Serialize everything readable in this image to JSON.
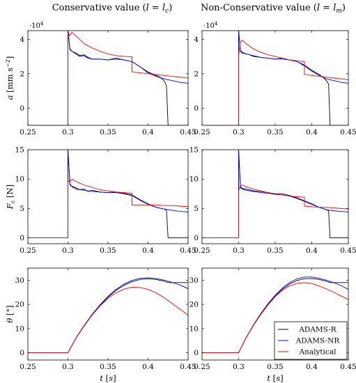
{
  "columns": [
    {
      "title": "Conservative value (l = l_c)"
    },
    {
      "title": "Non-Conservative value (l = l_m)"
    }
  ],
  "legend": {
    "entries": [
      "ADAMS-R",
      "ADAMS-NR",
      "Analytical"
    ],
    "placement": "bottom-right of bottom-right panel"
  },
  "colors": {
    "ADAMS-R": "#000000",
    "ADAMS-NR": "#0000ff",
    "Analytical": "#ff0000"
  },
  "chart_data": [
    {
      "type": "line",
      "row": 0,
      "col": 0,
      "title": "Conservative value (l = l_c)",
      "xlabel": "",
      "ylabel": "a [mm s^-2]",
      "xlim": [
        0.25,
        0.45
      ],
      "ylim": [
        -10000,
        45000
      ],
      "xticks": [
        "0.25",
        "0.3",
        "0.35",
        "0.4",
        "0.45"
      ],
      "yticks": [
        "0",
        "2",
        "4"
      ],
      "yscale_label": "·10^4",
      "series": [
        {
          "name": "ADAMS-R",
          "x": [
            0.25,
            0.3,
            0.3,
            0.3025,
            0.305,
            0.31,
            0.315,
            0.32,
            0.325,
            0.33,
            0.34,
            0.35,
            0.36,
            0.37,
            0.38,
            0.39,
            0.4,
            0.41,
            0.415,
            0.42,
            0.423,
            0.425,
            0.45
          ],
          "y": [
            -10000,
            -10000,
            45000,
            34000,
            33000,
            32000,
            30500,
            31000,
            29500,
            28500,
            28500,
            28000,
            29000,
            28000,
            27000,
            24000,
            21000,
            19000,
            18000,
            16000,
            13000,
            -10000,
            -10000
          ]
        },
        {
          "name": "ADAMS-NR",
          "x": [
            0.25,
            0.3,
            0.3,
            0.3025,
            0.305,
            0.31,
            0.315,
            0.32,
            0.325,
            0.33,
            0.34,
            0.35,
            0.36,
            0.37,
            0.38,
            0.39,
            0.4,
            0.41,
            0.42,
            0.43,
            0.44,
            0.45
          ],
          "y": [
            -10000,
            -10000,
            45000,
            34500,
            33000,
            31500,
            30000,
            30500,
            29000,
            28500,
            28500,
            28000,
            28500,
            28000,
            27000,
            24000,
            20500,
            18500,
            17000,
            16000,
            15000,
            14500
          ]
        },
        {
          "name": "Analytical",
          "x": [
            0.25,
            0.3,
            0.3,
            0.302,
            0.305,
            0.31,
            0.32,
            0.33,
            0.34,
            0.35,
            0.36,
            0.37,
            0.38,
            0.38,
            0.39,
            0.4,
            0.41,
            0.42,
            0.43,
            0.44,
            0.45
          ],
          "y": [
            -10000,
            -10000,
            45000,
            42000,
            44000,
            42000,
            37500,
            35000,
            33000,
            31500,
            30500,
            30000,
            29800,
            21000,
            20500,
            20000,
            19500,
            19000,
            18500,
            18000,
            17500
          ]
        }
      ]
    },
    {
      "type": "line",
      "row": 0,
      "col": 1,
      "title": "Non-Conservative value (l = l_m)",
      "xlabel": "",
      "ylabel": "",
      "xlim": [
        0.25,
        0.45
      ],
      "ylim": [
        -10000,
        45000
      ],
      "xticks": [
        "0.25",
        "0.3",
        "0.35",
        "0.4",
        "0.45"
      ],
      "yticks": [
        "0",
        "2",
        "4"
      ],
      "yscale_label": "·10^4",
      "series": [
        {
          "name": "ADAMS-R",
          "x": [
            0.25,
            0.3,
            0.3,
            0.3025,
            0.305,
            0.31,
            0.315,
            0.32,
            0.33,
            0.34,
            0.35,
            0.36,
            0.37,
            0.38,
            0.39,
            0.4,
            0.41,
            0.415,
            0.42,
            0.423,
            0.425,
            0.45
          ],
          "y": [
            -10000,
            -10000,
            45000,
            33000,
            32000,
            31500,
            31000,
            30000,
            29500,
            29000,
            28500,
            29000,
            28000,
            27000,
            25000,
            22000,
            19500,
            18000,
            16000,
            14000,
            -10000,
            -10000
          ]
        },
        {
          "name": "ADAMS-NR",
          "x": [
            0.25,
            0.3,
            0.3,
            0.3025,
            0.305,
            0.31,
            0.32,
            0.33,
            0.34,
            0.35,
            0.36,
            0.37,
            0.38,
            0.39,
            0.4,
            0.41,
            0.42,
            0.43,
            0.44,
            0.45
          ],
          "y": [
            -10000,
            -10000,
            45000,
            33500,
            32500,
            31500,
            30500,
            29500,
            29000,
            28500,
            28500,
            28000,
            27000,
            24500,
            21500,
            19000,
            17000,
            16000,
            15000,
            14500
          ]
        },
        {
          "name": "Analytical",
          "x": [
            0.25,
            0.3,
            0.3,
            0.302,
            0.305,
            0.31,
            0.32,
            0.33,
            0.34,
            0.35,
            0.36,
            0.37,
            0.38,
            0.39,
            0.39,
            0.4,
            0.41,
            0.42,
            0.43,
            0.44,
            0.45
          ],
          "y": [
            -10000,
            -10000,
            30000,
            38000,
            39500,
            37500,
            34500,
            32500,
            31000,
            30000,
            29000,
            28000,
            27500,
            27000,
            19500,
            19000,
            18500,
            18000,
            17500,
            17000,
            16500
          ]
        }
      ]
    },
    {
      "type": "line",
      "row": 1,
      "col": 0,
      "title": "",
      "xlabel": "",
      "ylabel": "F_c [N]",
      "xlim": [
        0.25,
        0.45
      ],
      "ylim": [
        -1,
        15
      ],
      "xticks": [
        "0.25",
        "0.3",
        "0.35",
        "0.4",
        "0.45"
      ],
      "yticks": [
        "0",
        "5",
        "10",
        "15"
      ],
      "series": [
        {
          "name": "ADAMS-R",
          "x": [
            0.25,
            0.3,
            0.3,
            0.3025,
            0.305,
            0.31,
            0.315,
            0.32,
            0.325,
            0.33,
            0.34,
            0.35,
            0.36,
            0.37,
            0.38,
            0.39,
            0.4,
            0.41,
            0.42,
            0.423,
            0.425,
            0.45
          ],
          "y": [
            0,
            0,
            15,
            9,
            8.8,
            8.5,
            8.2,
            8.3,
            7.9,
            8.1,
            7.8,
            7.7,
            7.8,
            7.6,
            7.3,
            6.5,
            5.8,
            5.2,
            4.9,
            4.7,
            0,
            0
          ]
        },
        {
          "name": "ADAMS-NR",
          "x": [
            0.25,
            0.3,
            0.3,
            0.3025,
            0.305,
            0.31,
            0.32,
            0.33,
            0.34,
            0.35,
            0.36,
            0.37,
            0.38,
            0.39,
            0.4,
            0.41,
            0.42,
            0.43,
            0.44,
            0.45
          ],
          "y": [
            0,
            0,
            15,
            9.2,
            8.7,
            8.3,
            8.1,
            7.9,
            7.8,
            7.7,
            7.7,
            7.5,
            7.2,
            6.4,
            5.7,
            5.2,
            4.9,
            4.7,
            4.5,
            4.4
          ]
        },
        {
          "name": "Analytical",
          "x": [
            0.25,
            0.3,
            0.3,
            0.302,
            0.305,
            0.31,
            0.32,
            0.33,
            0.34,
            0.35,
            0.36,
            0.37,
            0.38,
            0.38,
            0.39,
            0.4,
            0.41,
            0.42,
            0.43,
            0.44,
            0.45
          ],
          "y": [
            0,
            0,
            10,
            9.5,
            10,
            9.6,
            9,
            8.6,
            8.2,
            8,
            7.8,
            7.7,
            7.6,
            5.6,
            5.6,
            5.6,
            5.6,
            5.5,
            5.5,
            5.4,
            5.3
          ]
        }
      ]
    },
    {
      "type": "line",
      "row": 1,
      "col": 1,
      "title": "",
      "xlabel": "",
      "ylabel": "",
      "xlim": [
        0.25,
        0.45
      ],
      "ylim": [
        -1,
        15
      ],
      "xticks": [
        "0.25",
        "0.3",
        "0.35",
        "0.4",
        "0.45"
      ],
      "yticks": [
        "0",
        "5",
        "10",
        "15"
      ],
      "series": [
        {
          "name": "ADAMS-R",
          "x": [
            0.25,
            0.3,
            0.3,
            0.3025,
            0.305,
            0.31,
            0.32,
            0.33,
            0.34,
            0.35,
            0.36,
            0.37,
            0.38,
            0.39,
            0.4,
            0.41,
            0.42,
            0.423,
            0.425,
            0.45
          ],
          "y": [
            0,
            0,
            15,
            8.7,
            8.4,
            8.3,
            8,
            7.9,
            7.7,
            7.5,
            7.5,
            7.2,
            6.8,
            6.3,
            5.8,
            5.2,
            4.8,
            4.6,
            0,
            0
          ]
        },
        {
          "name": "ADAMS-NR",
          "x": [
            0.25,
            0.3,
            0.3,
            0.3025,
            0.305,
            0.31,
            0.32,
            0.33,
            0.34,
            0.35,
            0.36,
            0.37,
            0.38,
            0.39,
            0.4,
            0.41,
            0.42,
            0.43,
            0.44,
            0.45
          ],
          "y": [
            0,
            0,
            15,
            8.5,
            8.3,
            8.1,
            7.9,
            7.7,
            7.6,
            7.4,
            7.3,
            7.1,
            6.7,
            6.2,
            5.7,
            5.2,
            4.8,
            4.6,
            4.5,
            4.4
          ]
        },
        {
          "name": "Analytical",
          "x": [
            0.25,
            0.3,
            0.3,
            0.302,
            0.305,
            0.31,
            0.32,
            0.33,
            0.34,
            0.35,
            0.36,
            0.37,
            0.38,
            0.39,
            0.39,
            0.4,
            0.41,
            0.42,
            0.43,
            0.44,
            0.45
          ],
          "y": [
            0,
            0,
            8,
            8.8,
            9,
            8.7,
            8.3,
            8,
            7.7,
            7.5,
            7.3,
            7.1,
            7,
            6.9,
            5.4,
            5.3,
            5.2,
            5.2,
            5.1,
            5,
            4.9
          ]
        }
      ]
    },
    {
      "type": "line",
      "row": 2,
      "col": 0,
      "title": "",
      "xlabel": "t [s]",
      "ylabel": "θ [°]",
      "xlim": [
        0.25,
        0.45
      ],
      "ylim": [
        -3,
        35
      ],
      "xticks": [
        "0.25",
        "0.3",
        "0.35",
        "0.4",
        "0.45"
      ],
      "yticks": [
        "0",
        "10",
        "20",
        "30"
      ],
      "series": [
        {
          "name": "ADAMS-R",
          "x": [
            0.25,
            0.3,
            0.31,
            0.32,
            0.33,
            0.34,
            0.35,
            0.36,
            0.37,
            0.38,
            0.39,
            0.4,
            0.41,
            0.42,
            0.425,
            0.45
          ],
          "y": [
            0,
            0,
            6,
            11,
            15.5,
            19.5,
            23,
            25.8,
            27.9,
            29.4,
            30.3,
            30.6,
            30.3,
            29.6,
            29,
            29
          ]
        },
        {
          "name": "ADAMS-NR",
          "x": [
            0.25,
            0.3,
            0.31,
            0.32,
            0.33,
            0.34,
            0.35,
            0.36,
            0.37,
            0.38,
            0.39,
            0.4,
            0.41,
            0.42,
            0.43,
            0.44,
            0.45
          ],
          "y": [
            0,
            0,
            6.1,
            11.2,
            15.8,
            19.8,
            23.3,
            26.2,
            28.4,
            29.9,
            30.8,
            31,
            30.7,
            30,
            29.1,
            28,
            26.5
          ]
        },
        {
          "name": "Analytical",
          "x": [
            0.25,
            0.3,
            0.31,
            0.32,
            0.33,
            0.34,
            0.35,
            0.36,
            0.37,
            0.38,
            0.39,
            0.4,
            0.41,
            0.42,
            0.43,
            0.44,
            0.45
          ],
          "y": [
            0,
            0,
            6,
            11,
            15.5,
            19.3,
            22.5,
            24.8,
            26.3,
            27.1,
            27,
            26.2,
            24.8,
            22.8,
            20.4,
            18,
            15.5
          ]
        }
      ]
    },
    {
      "type": "line",
      "row": 2,
      "col": 1,
      "title": "",
      "xlabel": "t [s]",
      "ylabel": "",
      "xlim": [
        0.25,
        0.45
      ],
      "ylim": [
        -3,
        35
      ],
      "xticks": [
        "0.25",
        "0.3",
        "0.35",
        "0.4",
        "0.45"
      ],
      "yticks": [
        "0",
        "10",
        "20",
        "30"
      ],
      "series": [
        {
          "name": "ADAMS-R",
          "x": [
            0.25,
            0.3,
            0.31,
            0.32,
            0.33,
            0.34,
            0.35,
            0.36,
            0.37,
            0.38,
            0.39,
            0.4,
            0.41,
            0.42,
            0.425,
            0.45
          ],
          "y": [
            0,
            0,
            6.1,
            11.2,
            15.8,
            19.9,
            23.4,
            26.3,
            28.5,
            29.9,
            30.6,
            30.7,
            30.3,
            29.6,
            29,
            29
          ]
        },
        {
          "name": "ADAMS-NR",
          "x": [
            0.25,
            0.3,
            0.31,
            0.32,
            0.33,
            0.34,
            0.35,
            0.36,
            0.37,
            0.38,
            0.39,
            0.4,
            0.41,
            0.42,
            0.43,
            0.44,
            0.45
          ],
          "y": [
            0,
            0,
            6.2,
            11.4,
            16.1,
            20.2,
            23.8,
            26.8,
            29.1,
            30.6,
            31.3,
            31.3,
            30.8,
            30,
            29,
            27.8,
            26.2
          ]
        },
        {
          "name": "Analytical",
          "x": [
            0.25,
            0.3,
            0.31,
            0.32,
            0.33,
            0.34,
            0.35,
            0.36,
            0.37,
            0.38,
            0.39,
            0.4,
            0.41,
            0.42,
            0.43,
            0.44,
            0.45
          ],
          "y": [
            0,
            0,
            6.1,
            11.2,
            15.7,
            19.7,
            23.2,
            25.9,
            27.7,
            28.7,
            29,
            28.6,
            27.6,
            26.4,
            25,
            23.5,
            22
          ]
        }
      ]
    }
  ]
}
